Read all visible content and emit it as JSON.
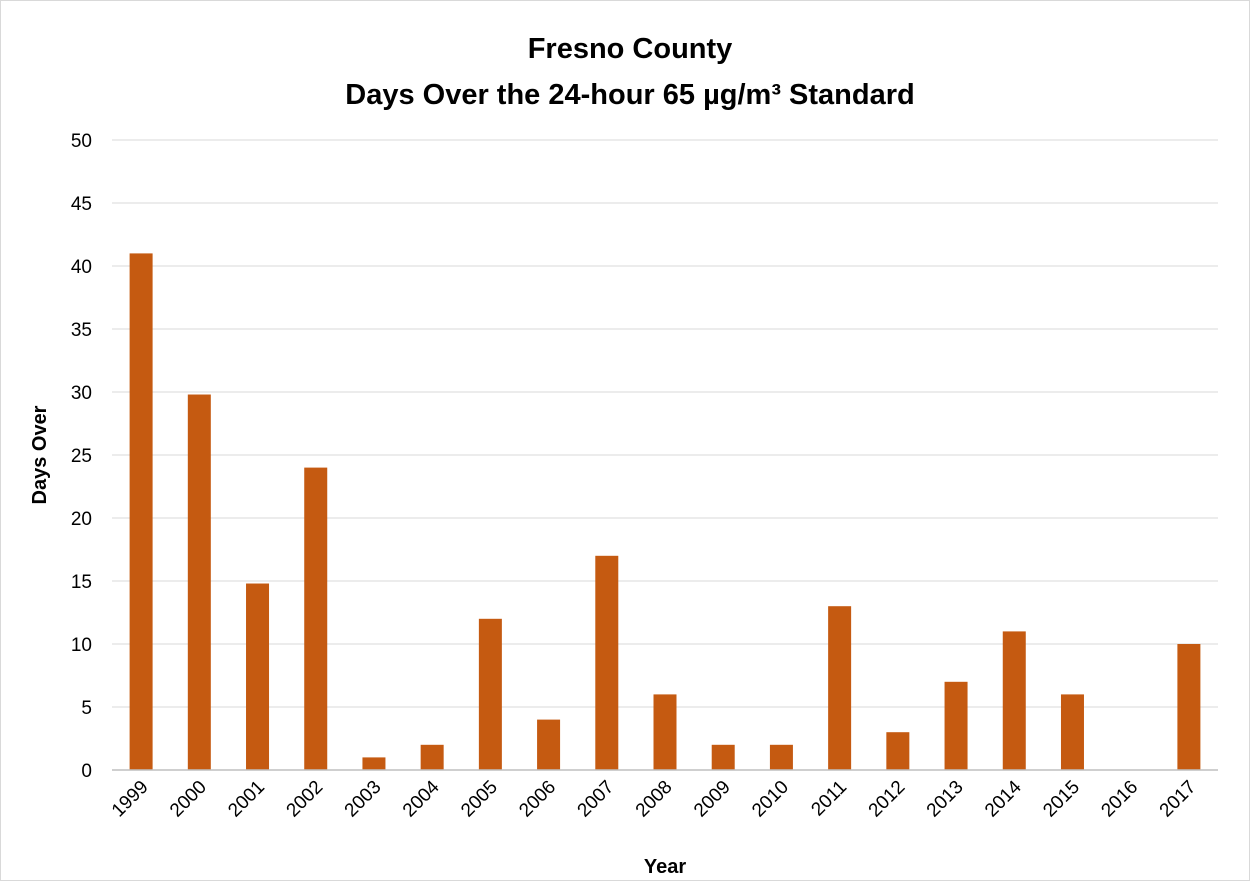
{
  "chart_data": {
    "type": "bar",
    "title": "Fresno County",
    "subtitle": "Days Over the 24-hour 65 µg/m³ Standard",
    "x_label": "Year",
    "y_label": "Days Over",
    "categories": [
      "1999",
      "2000",
      "2001",
      "2002",
      "2003",
      "2004",
      "2005",
      "2006",
      "2007",
      "2008",
      "2009",
      "2010",
      "2011",
      "2012",
      "2013",
      "2014",
      "2015",
      "2016",
      "2017"
    ],
    "values": [
      41,
      29.8,
      14.8,
      24,
      1,
      2,
      12,
      4,
      17,
      6,
      2,
      2,
      13,
      3,
      7,
      11,
      6,
      0,
      10
    ],
    "color": "#c55a11",
    "ylim": [
      0,
      50
    ],
    "yticks": [
      0,
      5,
      10,
      15,
      20,
      25,
      30,
      35,
      40,
      45,
      50
    ],
    "grid": true
  }
}
